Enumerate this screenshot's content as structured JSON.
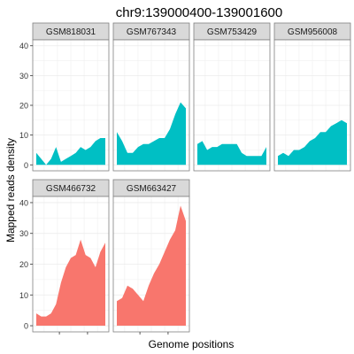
{
  "chart_data": {
    "type": "area",
    "title": "chr9:139000400-139001600",
    "xlabel": "Genome positions",
    "ylabel": "Mapped reads density",
    "ylim": [
      -2,
      42
    ],
    "yticks": [
      0,
      10,
      20,
      30,
      40
    ],
    "grid": true,
    "legend": "none",
    "colors": {
      "group_a": "#00BFC4",
      "group_b": "#F8766D",
      "strip_bg": "#D9D9D9",
      "panel_border": "#808080",
      "grid": "#EBEBEB"
    },
    "panels": [
      {
        "name": "GSM818031",
        "color": "#00BFC4",
        "values": [
          4,
          2,
          0,
          2,
          6,
          1,
          2,
          3,
          4,
          6,
          5,
          6,
          8,
          9,
          9
        ]
      },
      {
        "name": "GSM767343",
        "color": "#00BFC4",
        "values": [
          11,
          8,
          4,
          4,
          6,
          7,
          7,
          8,
          9,
          9,
          12,
          17,
          21,
          19
        ]
      },
      {
        "name": "GSM753429",
        "color": "#00BFC4",
        "values": [
          7,
          8,
          5,
          6,
          6,
          7,
          7,
          7,
          7,
          4,
          3,
          3,
          3,
          3,
          6
        ]
      },
      {
        "name": "GSM956008",
        "color": "#00BFC4",
        "values": [
          3,
          4,
          3,
          5,
          5,
          6,
          8,
          9,
          11,
          11,
          13,
          14,
          15,
          14
        ]
      },
      {
        "name": "GSM466732",
        "color": "#F8766D",
        "values": [
          4,
          3,
          3,
          4,
          7,
          14,
          19,
          22,
          23,
          28,
          23,
          22,
          19,
          24,
          27
        ]
      },
      {
        "name": "GSM663427",
        "color": "#F8766D",
        "values": [
          8,
          9,
          13,
          12,
          10,
          8,
          13,
          17,
          20,
          24,
          28,
          31,
          39,
          34
        ]
      }
    ]
  }
}
